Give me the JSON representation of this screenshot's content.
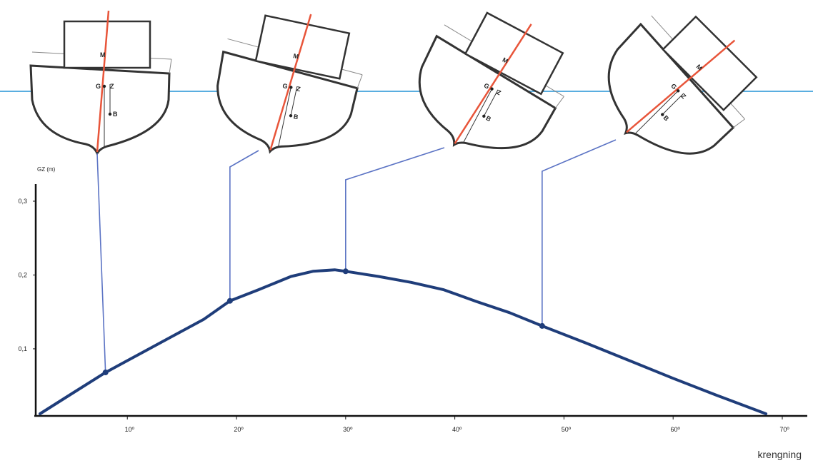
{
  "chart_data": {
    "type": "line",
    "title": "",
    "xlabel": "krengning",
    "ylabel": "GZ (m)",
    "xlim": [
      2,
      70
    ],
    "ylim": [
      0.012,
      0.3
    ],
    "x_ticks": [
      {
        "value": 10,
        "label": "10º"
      },
      {
        "value": 20,
        "label": "20º"
      },
      {
        "value": 30,
        "label": "30º"
      },
      {
        "value": 40,
        "label": "40º"
      },
      {
        "value": 50,
        "label": "50º"
      },
      {
        "value": 60,
        "label": "60º"
      },
      {
        "value": 70,
        "label": "70º"
      }
    ],
    "y_ticks": [
      {
        "value": 0.1,
        "label": "0,1"
      },
      {
        "value": 0.2,
        "label": "0,2"
      },
      {
        "value": 0.3,
        "label": "0,3"
      }
    ],
    "series": [
      {
        "color": "#1f3d7a",
        "x": [
          2,
          5,
          8,
          11,
          14,
          17,
          19.4,
          22,
          25,
          27,
          29,
          30,
          33,
          36,
          39,
          42,
          45,
          48,
          52,
          56,
          60,
          64,
          68.5
        ],
        "y": [
          0.012,
          0.04,
          0.068,
          0.092,
          0.116,
          0.14,
          0.165,
          0.18,
          0.198,
          0.205,
          0.207,
          0.205,
          0.198,
          0.19,
          0.18,
          0.164,
          0.149,
          0.131,
          0.108,
          0.084,
          0.06,
          0.037,
          0.012
        ]
      }
    ],
    "highlight_points": [
      {
        "x": 8,
        "y": 0.068
      },
      {
        "x": 19.4,
        "y": 0.165
      },
      {
        "x": 30,
        "y": 0.205
      },
      {
        "x": 48,
        "y": 0.131
      }
    ],
    "colors": {
      "curve": "#1f3d7a",
      "connector": "#5b73c4",
      "waterline": "#5aaee0",
      "mast": "#e8553a",
      "axis": "#111111"
    }
  },
  "ship_labels": {
    "m": "M",
    "g": "G",
    "z": "Z",
    "b": "B"
  }
}
